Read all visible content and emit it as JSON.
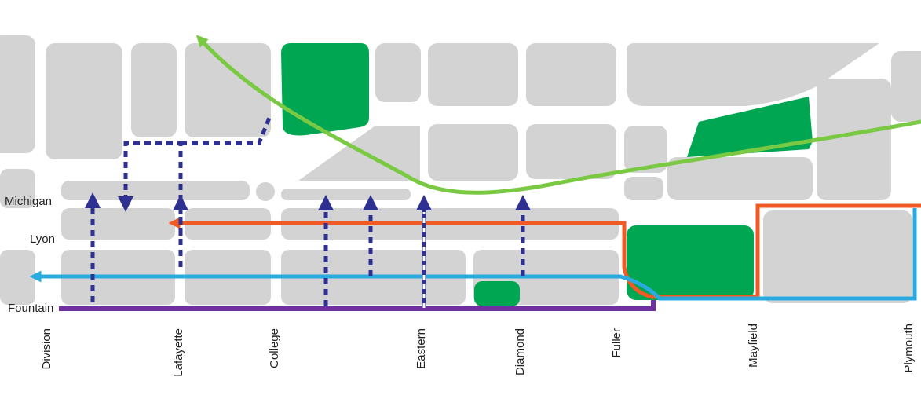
{
  "streets": {
    "horizontal": [
      "Michigan",
      "Lyon",
      "Fountain"
    ],
    "vertical": [
      "Division",
      "Lafayette",
      "College",
      "Eastern",
      "Diamond",
      "Fuller",
      "Mayfield",
      "Plymouth"
    ]
  }
}
